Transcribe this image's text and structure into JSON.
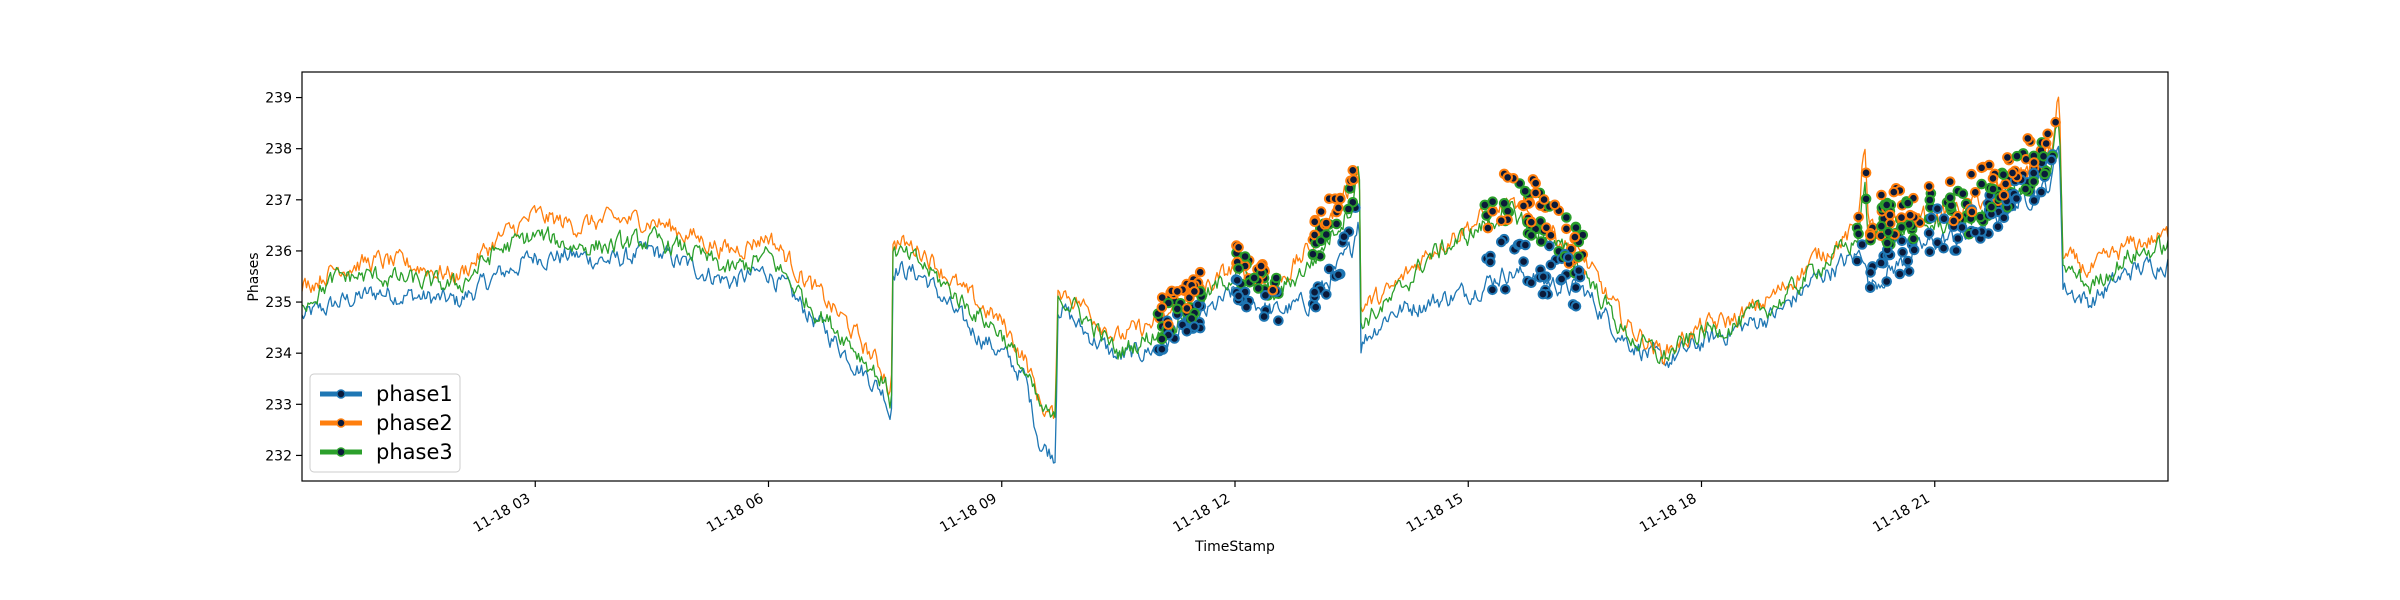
{
  "chart_data": {
    "type": "line",
    "title": "",
    "xlabel": "TimeStamp",
    "ylabel": "Phases",
    "x_range": [
      "11-18 00:00",
      "11-18 24:00"
    ],
    "ylim": [
      231.5,
      239.5
    ],
    "x_ticks": [
      {
        "hour": 3,
        "label": "11-18 03"
      },
      {
        "hour": 6,
        "label": "11-18 06"
      },
      {
        "hour": 9,
        "label": "11-18 09"
      },
      {
        "hour": 12,
        "label": "11-18 12"
      },
      {
        "hour": 15,
        "label": "11-18 15"
      },
      {
        "hour": 18,
        "label": "11-18 18"
      },
      {
        "hour": 21,
        "label": "11-18 21"
      }
    ],
    "y_ticks": [
      232,
      233,
      234,
      235,
      236,
      237,
      238,
      239
    ],
    "grid": false,
    "legend": {
      "position": "lower-left"
    },
    "series": [
      {
        "name": "phase1",
        "color": "#1f77b4",
        "points": [
          [
            0,
            234.7
          ],
          [
            0.5,
            235.0
          ],
          [
            1,
            235.2
          ],
          [
            1.5,
            235.1
          ],
          [
            2,
            235.0
          ],
          [
            2.5,
            235.5
          ],
          [
            3,
            235.9
          ],
          [
            3.5,
            235.9
          ],
          [
            4,
            235.8
          ],
          [
            4.5,
            236.0
          ],
          [
            5,
            235.7
          ],
          [
            5.5,
            235.4
          ],
          [
            6,
            235.6
          ],
          [
            6.5,
            234.8
          ],
          [
            7,
            234.0
          ],
          [
            7.5,
            233.2
          ],
          [
            7.58,
            232.7
          ],
          [
            7.6,
            235.7
          ],
          [
            8,
            235.5
          ],
          [
            8.5,
            234.6
          ],
          [
            9,
            234.0
          ],
          [
            9.3,
            233.5
          ],
          [
            9.5,
            232.2
          ],
          [
            9.7,
            232.0
          ],
          [
            9.71,
            235.0
          ],
          [
            10,
            234.5
          ],
          [
            10.5,
            233.9
          ],
          [
            11,
            234.1
          ],
          [
            11.5,
            234.6
          ],
          [
            12,
            235.2
          ],
          [
            12.5,
            234.8
          ],
          [
            13,
            235.0
          ],
          [
            13.5,
            236.0
          ],
          [
            13.6,
            236.8
          ],
          [
            13.61,
            234.2
          ],
          [
            14,
            234.8
          ],
          [
            14.5,
            235.0
          ],
          [
            15,
            235.2
          ],
          [
            15.5,
            235.6
          ],
          [
            16,
            235.4
          ],
          [
            16.5,
            235.2
          ],
          [
            17,
            234.3
          ],
          [
            17.5,
            233.8
          ],
          [
            18,
            234.2
          ],
          [
            18.5,
            234.5
          ],
          [
            19,
            234.8
          ],
          [
            19.5,
            235.5
          ],
          [
            20,
            235.9
          ],
          [
            20.1,
            236.0
          ],
          [
            20.15,
            235.3
          ],
          [
            20.5,
            235.7
          ],
          [
            21,
            236.2
          ],
          [
            21.5,
            236.3
          ],
          [
            22,
            236.9
          ],
          [
            22.5,
            237.3
          ],
          [
            22.6,
            238.3
          ],
          [
            22.65,
            235.3
          ],
          [
            23,
            235.0
          ],
          [
            23.5,
            235.6
          ],
          [
            24,
            235.8
          ]
        ]
      },
      {
        "name": "phase2",
        "color": "#ff7f0e",
        "points": [
          [
            0,
            235.3
          ],
          [
            0.5,
            235.7
          ],
          [
            1,
            235.8
          ],
          [
            1.5,
            235.7
          ],
          [
            2,
            235.5
          ],
          [
            2.5,
            236.2
          ],
          [
            3,
            236.7
          ],
          [
            3.5,
            236.5
          ],
          [
            4,
            236.6
          ],
          [
            4.5,
            236.6
          ],
          [
            5,
            236.3
          ],
          [
            5.5,
            236.0
          ],
          [
            6,
            236.3
          ],
          [
            6.5,
            235.4
          ],
          [
            7,
            234.6
          ],
          [
            7.5,
            233.6
          ],
          [
            7.58,
            233.2
          ],
          [
            7.6,
            236.2
          ],
          [
            8,
            236.0
          ],
          [
            8.5,
            235.2
          ],
          [
            9,
            234.6
          ],
          [
            9.3,
            233.9
          ],
          [
            9.5,
            233.0
          ],
          [
            9.7,
            232.7
          ],
          [
            9.71,
            235.3
          ],
          [
            10,
            235.0
          ],
          [
            10.5,
            234.3
          ],
          [
            11,
            234.6
          ],
          [
            11.5,
            235.1
          ],
          [
            12,
            235.7
          ],
          [
            12.5,
            235.3
          ],
          [
            13,
            236.1
          ],
          [
            13.5,
            237.3
          ],
          [
            13.6,
            237.6
          ],
          [
            13.61,
            234.9
          ],
          [
            14,
            235.2
          ],
          [
            14.5,
            236.0
          ],
          [
            15,
            236.5
          ],
          [
            15.5,
            236.9
          ],
          [
            16,
            236.5
          ],
          [
            16.5,
            235.8
          ],
          [
            17,
            234.6
          ],
          [
            17.5,
            234.0
          ],
          [
            18,
            234.5
          ],
          [
            18.5,
            234.7
          ],
          [
            19,
            235.2
          ],
          [
            19.5,
            235.9
          ],
          [
            20,
            236.4
          ],
          [
            20.1,
            238.3
          ],
          [
            20.15,
            236.4
          ],
          [
            20.5,
            236.6
          ],
          [
            21,
            236.7
          ],
          [
            21.5,
            236.9
          ],
          [
            22,
            237.4
          ],
          [
            22.5,
            237.9
          ],
          [
            22.6,
            239.1
          ],
          [
            22.65,
            235.9
          ],
          [
            23,
            235.6
          ],
          [
            23.5,
            236.1
          ],
          [
            24,
            236.3
          ]
        ]
      },
      {
        "name": "phase3",
        "color": "#2ca02c",
        "points": [
          [
            0,
            235.0
          ],
          [
            0.5,
            235.5
          ],
          [
            1,
            235.5
          ],
          [
            1.5,
            235.4
          ],
          [
            2,
            235.3
          ],
          [
            2.5,
            236.0
          ],
          [
            3,
            236.3
          ],
          [
            3.5,
            236.1
          ],
          [
            4,
            236.1
          ],
          [
            4.5,
            236.2
          ],
          [
            5,
            236.0
          ],
          [
            5.5,
            235.6
          ],
          [
            6,
            235.9
          ],
          [
            6.5,
            235.0
          ],
          [
            7,
            234.3
          ],
          [
            7.5,
            233.4
          ],
          [
            7.58,
            233.0
          ],
          [
            7.6,
            236.0
          ],
          [
            8,
            235.7
          ],
          [
            8.5,
            235.0
          ],
          [
            9,
            234.4
          ],
          [
            9.3,
            233.6
          ],
          [
            9.5,
            232.9
          ],
          [
            9.7,
            232.6
          ],
          [
            9.71,
            235.2
          ],
          [
            10,
            234.8
          ],
          [
            10.5,
            234.0
          ],
          [
            11,
            234.4
          ],
          [
            11.5,
            234.9
          ],
          [
            12,
            235.6
          ],
          [
            12.5,
            235.1
          ],
          [
            13,
            235.8
          ],
          [
            13.5,
            236.9
          ],
          [
            13.6,
            237.8
          ],
          [
            13.61,
            234.6
          ],
          [
            14,
            235.0
          ],
          [
            14.5,
            235.9
          ],
          [
            15,
            236.3
          ],
          [
            15.5,
            236.8
          ],
          [
            16,
            236.3
          ],
          [
            16.5,
            235.6
          ],
          [
            17,
            234.4
          ],
          [
            17.5,
            233.9
          ],
          [
            18,
            234.4
          ],
          [
            18.5,
            234.6
          ],
          [
            19,
            235.0
          ],
          [
            19.5,
            235.7
          ],
          [
            20,
            236.2
          ],
          [
            20.1,
            237.3
          ],
          [
            20.15,
            236.2
          ],
          [
            20.5,
            236.4
          ],
          [
            21,
            236.5
          ],
          [
            21.5,
            236.6
          ],
          [
            22,
            237.2
          ],
          [
            22.5,
            237.6
          ],
          [
            22.6,
            238.6
          ],
          [
            22.65,
            235.7
          ],
          [
            23,
            235.3
          ],
          [
            23.5,
            235.9
          ],
          [
            24,
            236.1
          ]
        ]
      }
    ]
  }
}
